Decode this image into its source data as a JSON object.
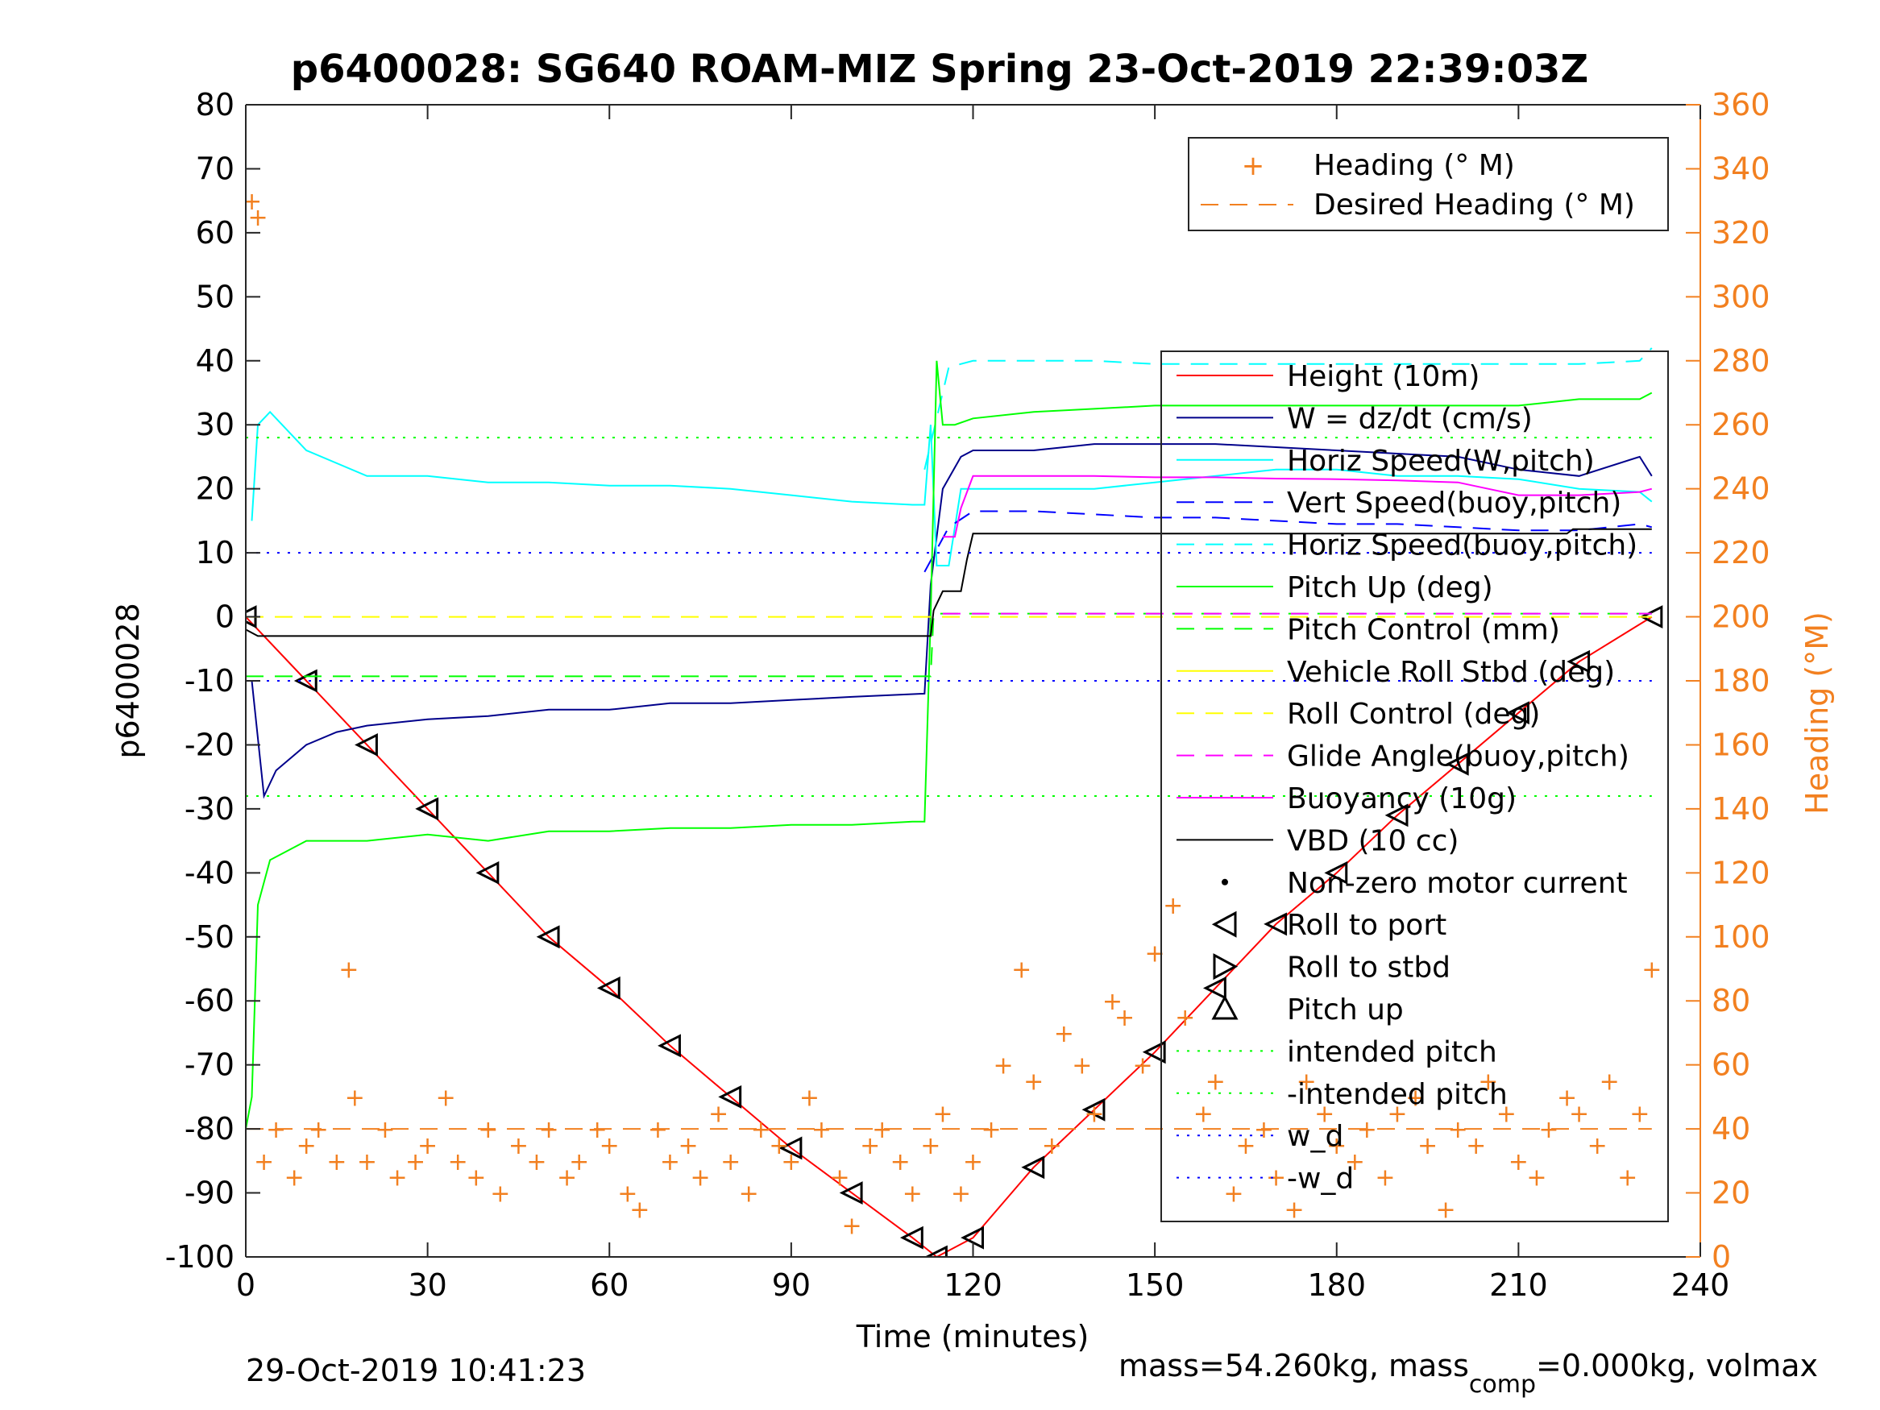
{
  "chart_data": {
    "type": "line",
    "title": "p6400028: SG640 ROAM-MIZ Spring 23-Oct-2019 22:39:03Z",
    "xlabel": "Time (minutes)",
    "ylabel": "p6400028",
    "y2label": "Heading (°M)",
    "xlim": [
      0,
      240
    ],
    "ylim": [
      -100,
      80
    ],
    "y2lim": [
      0,
      360
    ],
    "xticks": [
      "0",
      "30",
      "60",
      "90",
      "120",
      "150",
      "180",
      "210",
      "240"
    ],
    "yticks": [
      "80",
      "70",
      "60",
      "50",
      "40",
      "30",
      "20",
      "10",
      "0",
      "-10",
      "-20",
      "-30",
      "-40",
      "-50",
      "-60",
      "-70",
      "-80",
      "-90",
      "-100"
    ],
    "y2ticks": [
      "360",
      "340",
      "320",
      "300",
      "280",
      "260",
      "240",
      "220",
      "200",
      "180",
      "160",
      "140",
      "120",
      "100",
      "80",
      "60",
      "40",
      "20",
      "0"
    ],
    "grid": false,
    "legend_top": {
      "placement": "top-right",
      "entries": [
        "Heading (° M)",
        "Desired Heading (° M)"
      ]
    },
    "legend_main": {
      "placement": "right",
      "entries": [
        {
          "label": "Height (10m)",
          "color": "#ff0000",
          "style": "solid"
        },
        {
          "label": "W = dz/dt (cm/s)",
          "color": "#00008b",
          "style": "solid"
        },
        {
          "label": "Horiz Speed(W,pitch)",
          "color": "#00ffff",
          "style": "solid"
        },
        {
          "label": "Vert Speed(buoy,pitch)",
          "color": "#0000ff",
          "style": "dash"
        },
        {
          "label": "Horiz Speed(buoy,pitch)",
          "color": "#00ffff",
          "style": "dash"
        },
        {
          "label": "Pitch Up (deg)",
          "color": "#00ff00",
          "style": "solid"
        },
        {
          "label": "Pitch Control (mm)",
          "color": "#00ff00",
          "style": "dash"
        },
        {
          "label": "Vehicle Roll Stbd (deg)",
          "color": "#ffff00",
          "style": "solid"
        },
        {
          "label": "Roll Control (deg)",
          "color": "#ffff00",
          "style": "dash"
        },
        {
          "label": "Glide Angle(buoy,pitch)",
          "color": "#ff00ff",
          "style": "dash"
        },
        {
          "label": "Buoyancy (10g)",
          "color": "#ff00ff",
          "style": "solid"
        },
        {
          "label": "VBD (10 cc)",
          "color": "#000000",
          "style": "solid"
        },
        {
          "label": "Non-zero motor current",
          "color": "#000000",
          "style": "dot"
        },
        {
          "label": "Roll to port",
          "color": "#000000",
          "style": "tri-left"
        },
        {
          "label": "Roll to stbd",
          "color": "#000000",
          "style": "tri-right"
        },
        {
          "label": "Pitch up",
          "color": "#000000",
          "style": "tri-up"
        },
        {
          "label": "intended pitch",
          "color": "#00ff00",
          "style": "dot"
        },
        {
          "label": "-intended pitch",
          "color": "#00ff00",
          "style": "dot"
        },
        {
          "label": "w_d",
          "color": "#0000ff",
          "style": "dot"
        },
        {
          "label": "-w_d",
          "color": "#0000ff",
          "style": "dot"
        }
      ]
    },
    "series": [
      {
        "name": "Height (10m)",
        "x": [
          0,
          10,
          20,
          30,
          40,
          50,
          60,
          70,
          80,
          90,
          100,
          110,
          114,
          120,
          130,
          140,
          150,
          160,
          170,
          180,
          190,
          200,
          210,
          220,
          232
        ],
        "values": [
          0,
          -10,
          -20,
          -30,
          -40,
          -50,
          -58,
          -67,
          -75,
          -83,
          -90,
          -97,
          -100,
          -97,
          -86,
          -77,
          -68,
          -58,
          -48,
          -40,
          -31,
          -23,
          -15,
          -7,
          0
        ]
      },
      {
        "name": "W = dz/dt (cm/s)",
        "x": [
          1,
          3,
          5,
          10,
          15,
          20,
          30,
          40,
          50,
          60,
          70,
          80,
          90,
          100,
          112,
          113,
          115,
          118,
          120,
          130,
          140,
          150,
          160,
          170,
          180,
          190,
          200,
          210,
          220,
          230,
          232
        ],
        "values": [
          -10,
          -28,
          -24,
          -20,
          -18,
          -17,
          -16,
          -15.5,
          -14.5,
          -14.5,
          -13.5,
          -13.5,
          -13,
          -12.5,
          -12,
          5,
          20,
          25,
          26,
          26,
          27,
          27,
          27,
          26.5,
          26,
          25.5,
          25,
          23,
          22,
          25,
          22
        ]
      },
      {
        "name": "Horiz Speed(W,pitch)",
        "x": [
          1,
          2,
          4,
          10,
          20,
          30,
          40,
          50,
          60,
          70,
          80,
          90,
          100,
          110,
          112,
          113,
          114,
          116,
          118,
          120,
          130,
          140,
          150,
          160,
          170,
          180,
          190,
          200,
          210,
          220,
          230,
          232
        ],
        "values": [
          15,
          30,
          32,
          26,
          22,
          22,
          21,
          21,
          20.5,
          20.5,
          20,
          19,
          18,
          17.5,
          17.5,
          30,
          8,
          8,
          20,
          20,
          20,
          20,
          21,
          22,
          23,
          23,
          22,
          22,
          21.5,
          20,
          19.5,
          18
        ]
      },
      {
        "name": "Vert Speed(buoy,pitch)",
        "x": [
          112,
          116,
          120,
          130,
          140,
          150,
          160,
          170,
          180,
          190,
          200,
          210,
          220,
          230,
          232
        ],
        "values": [
          7,
          14,
          16.5,
          16.5,
          16,
          15.5,
          15.5,
          15,
          14.5,
          14.5,
          14,
          13.5,
          13.5,
          14.5,
          14
        ]
      },
      {
        "name": "Horiz Speed(buoy,pitch)",
        "x": [
          112,
          116,
          120,
          130,
          140,
          150,
          160,
          170,
          180,
          190,
          200,
          210,
          220,
          230,
          232
        ],
        "values": [
          23,
          39,
          40,
          40,
          40,
          39.5,
          39.5,
          39.5,
          39.5,
          39.5,
          39.5,
          39.5,
          39.5,
          40,
          42
        ]
      },
      {
        "name": "Pitch Up (deg)",
        "x": [
          0,
          1,
          2,
          4,
          10,
          20,
          30,
          40,
          50,
          60,
          70,
          80,
          90,
          100,
          110,
          112,
          113,
          114,
          115,
          117,
          120,
          130,
          140,
          150,
          160,
          170,
          180,
          190,
          200,
          210,
          220,
          230,
          232
        ],
        "values": [
          -80,
          -75,
          -45,
          -38,
          -35,
          -35,
          -34,
          -35,
          -33.5,
          -33.5,
          -33,
          -33,
          -32.5,
          -32.5,
          -32,
          -32,
          0,
          40,
          30,
          30,
          31,
          32,
          32.5,
          33,
          33,
          33,
          33,
          33,
          33,
          33,
          34,
          34,
          35
        ]
      },
      {
        "name": "Pitch Control (mm)",
        "x": [
          0,
          113,
          113.5,
          232
        ],
        "values": [
          -9.3,
          -9.3,
          0.5,
          0.5
        ]
      },
      {
        "name": "Roll Control (deg)",
        "x": [
          0,
          232
        ],
        "values": [
          0,
          0
        ]
      },
      {
        "name": "Glide Angle(buoy,pitch)",
        "x": [
          115,
          232
        ],
        "values": [
          0.5,
          0.5
        ]
      },
      {
        "name": "Buoyancy (10g)",
        "x": [
          115,
          117,
          118,
          120,
          130,
          140,
          150,
          160,
          170,
          180,
          190,
          200,
          205,
          210,
          220,
          230,
          232
        ],
        "values": [
          12.5,
          12.5,
          17,
          22,
          22,
          22,
          21.8,
          21.8,
          21.6,
          21.5,
          21.3,
          21,
          20,
          19,
          19,
          19.5,
          20
        ]
      },
      {
        "name": "VBD (10 cc)",
        "x": [
          0,
          2,
          10,
          30,
          60,
          90,
          113,
          113.5,
          115,
          118,
          119,
          120,
          140,
          180,
          218,
          219,
          232
        ],
        "values": [
          -2,
          -3,
          -3,
          -3,
          -3,
          -3,
          -3,
          1,
          4,
          4,
          9,
          13,
          13,
          13,
          13,
          13.7,
          13.7
        ]
      },
      {
        "name": "Heading (° M)",
        "x": [
          1,
          2,
          3,
          5,
          8,
          10,
          12,
          15,
          17,
          18,
          20,
          23,
          25,
          28,
          30,
          33,
          35,
          38,
          40,
          42,
          45,
          48,
          50,
          53,
          55,
          58,
          60,
          63,
          65,
          68,
          70,
          73,
          75,
          78,
          80,
          83,
          85,
          88,
          90,
          93,
          95,
          98,
          100,
          103,
          105,
          108,
          110,
          113,
          115,
          118,
          120,
          123,
          125,
          128,
          130,
          133,
          135,
          138,
          140,
          143,
          145,
          148,
          150,
          153,
          155,
          158,
          160,
          163,
          165,
          168,
          170,
          173,
          175,
          178,
          180,
          183,
          185,
          188,
          190,
          193,
          195,
          198,
          200,
          203,
          205,
          208,
          210,
          213,
          215,
          218,
          220,
          223,
          225,
          228,
          230,
          232
        ],
        "values": [
          330,
          325,
          30,
          40,
          25,
          35,
          40,
          30,
          90,
          50,
          30,
          40,
          25,
          30,
          35,
          50,
          30,
          25,
          40,
          20,
          35,
          30,
          40,
          25,
          30,
          40,
          35,
          20,
          15,
          40,
          30,
          35,
          25,
          45,
          30,
          20,
          40,
          35,
          30,
          50,
          40,
          25,
          10,
          35,
          40,
          30,
          20,
          35,
          45,
          20,
          30,
          40,
          60,
          90,
          55,
          35,
          70,
          60,
          45,
          80,
          75,
          60,
          95,
          110,
          75,
          45,
          55,
          20,
          35,
          40,
          25,
          15,
          55,
          45,
          35,
          30,
          40,
          25,
          45,
          50,
          35,
          15,
          40,
          35,
          55,
          45,
          30,
          25,
          40,
          50,
          45,
          35,
          55,
          25,
          45,
          90
        ]
      },
      {
        "name": "Desired Heading (° M)",
        "x": [
          0,
          232
        ],
        "values": [
          40,
          40
        ]
      },
      {
        "name": "intended pitch",
        "x": [
          0,
          232
        ],
        "values": [
          28,
          28
        ]
      },
      {
        "name": "-intended pitch",
        "x": [
          0,
          232
        ],
        "values": [
          -28,
          -28
        ]
      },
      {
        "name": "w_d",
        "x": [
          0,
          232
        ],
        "values": [
          10,
          10
        ]
      },
      {
        "name": "-w_d",
        "x": [
          0,
          232
        ],
        "values": [
          -10,
          -10
        ]
      }
    ]
  },
  "footer": {
    "timestamp": "29-Oct-2019 10:41:23",
    "mass_prefix": "mass=54.260kg, mass",
    "mass_sub": "comp",
    "mass_suffix": "=0.000kg, volmax"
  },
  "colors": {
    "heading": "#f28020",
    "height": "#ff0000",
    "w": "#00008b",
    "horiz_speed": "#00ffff",
    "vert_speed": "#0000ff",
    "pitch": "#00ff00",
    "roll": "#ffff00",
    "glide": "#ff00ff",
    "buoyancy": "#ff00ff",
    "vbd": "#000000"
  }
}
